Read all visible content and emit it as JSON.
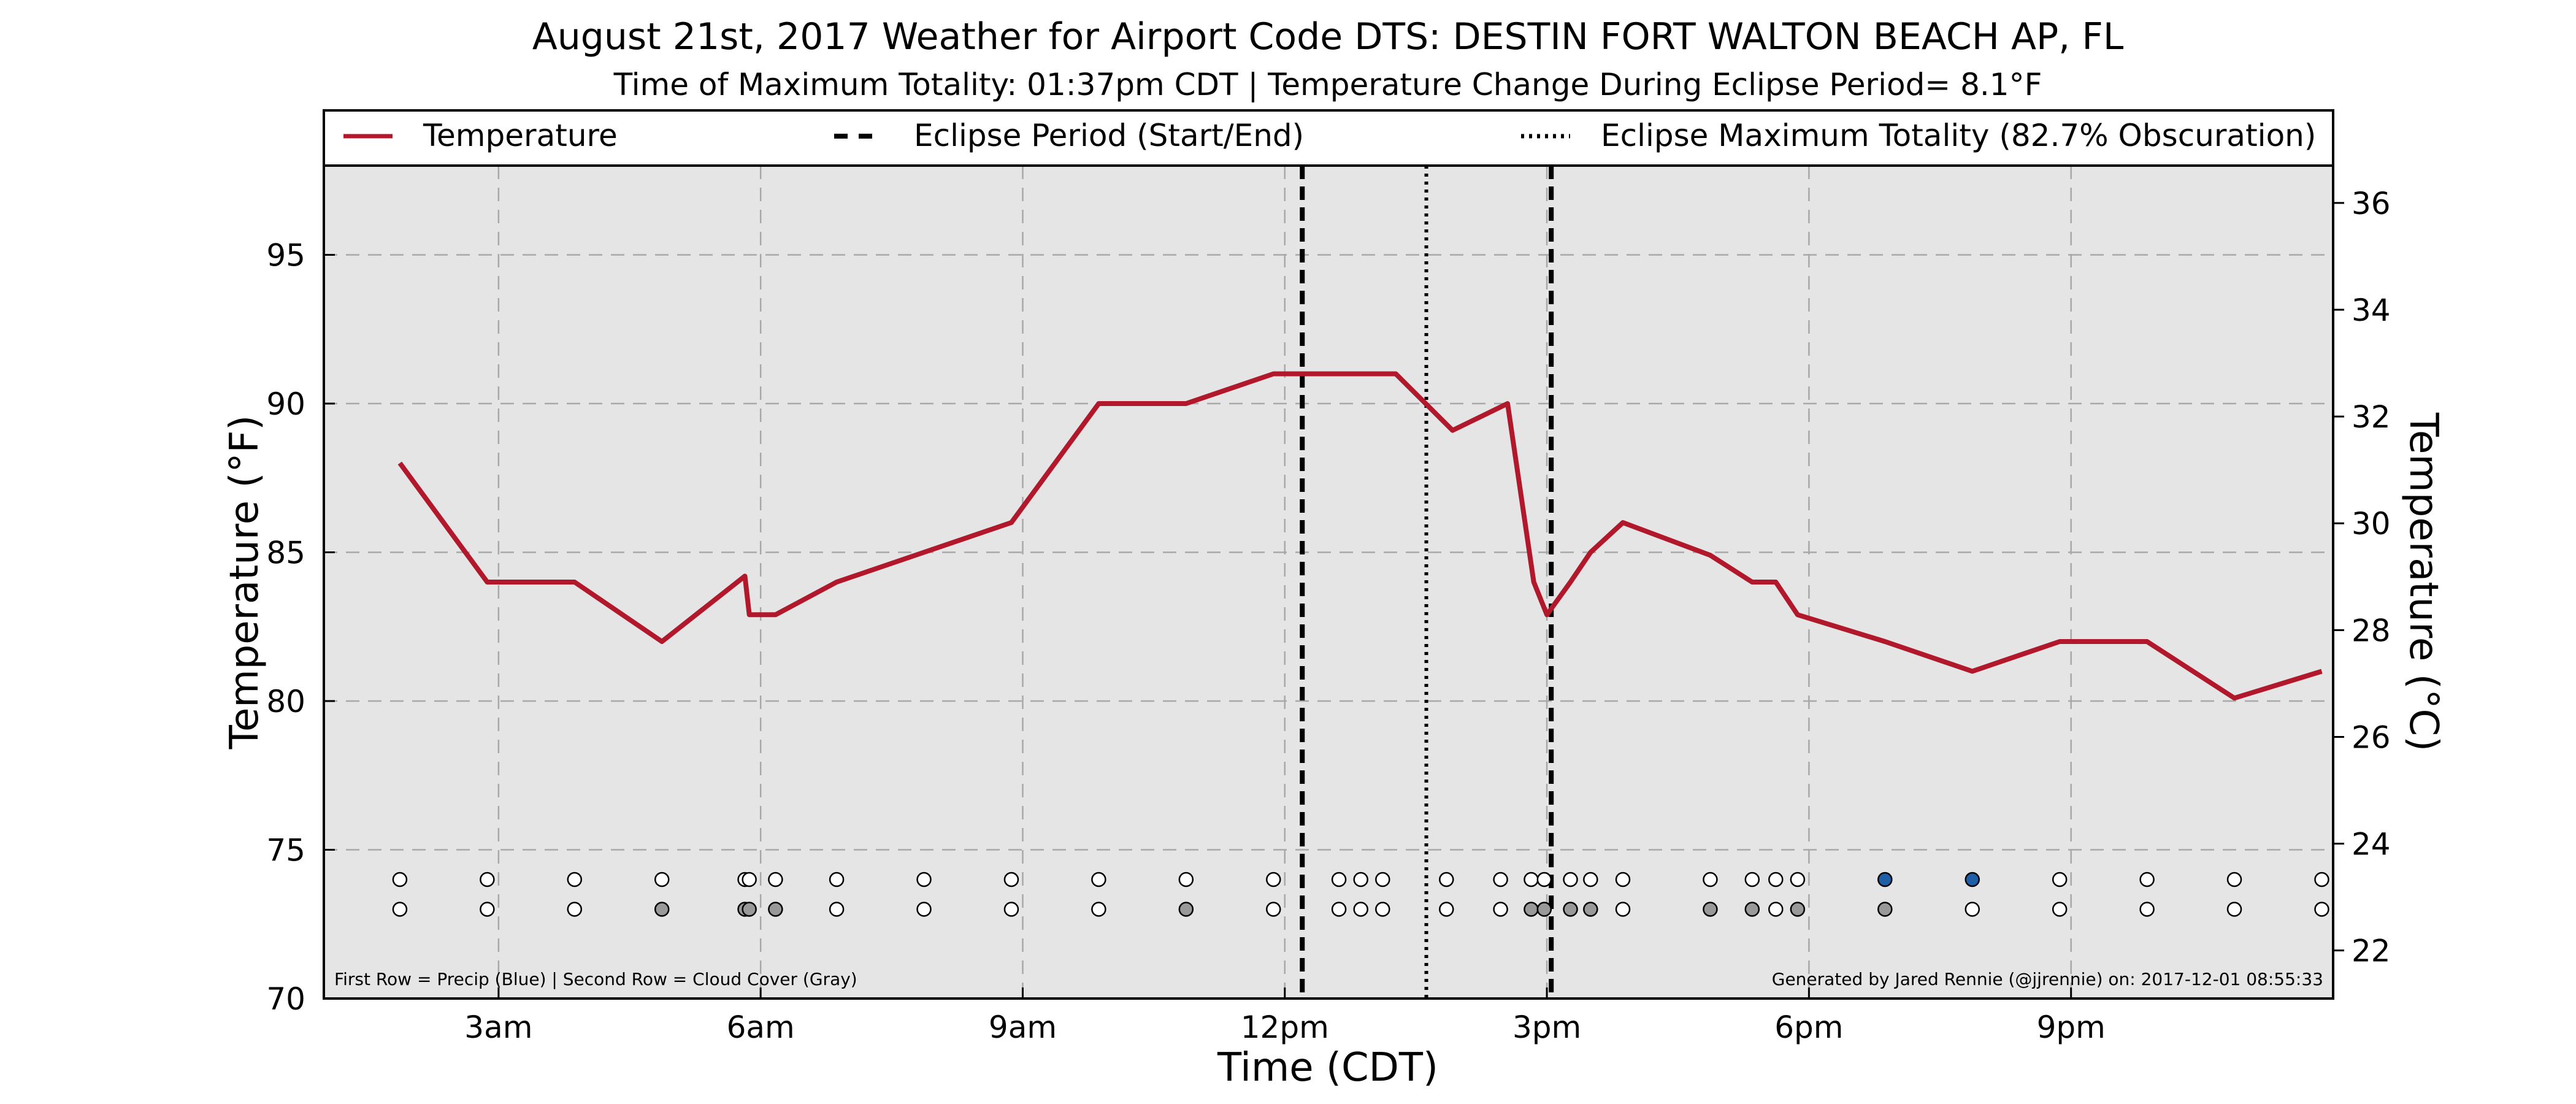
{
  "chart_data": {
    "type": "line",
    "title": "August 21st, 2017 Weather for Airport Code DTS: DESTIN FORT WALTON BEACH AP, FL",
    "subtitle": "Time of Maximum Totality: 01:37pm CDT | Temperature Change During Eclipse Period= 8.1$^\\circ$F",
    "subtitle_display": "Time of Maximum Totality: 01:37pm CDT | Temperature Change During Eclipse Period= 8.1°F",
    "xlabel": "Time (CDT)",
    "ylabel": "Temperature ($^\\circ$F)",
    "ylabel_display": "Temperature (°F)",
    "ylabel_right": "Temperature ($^\\circ$C)",
    "ylabel_right_display": "Temperature (°C)",
    "xlim": [
      1.0,
      24.0
    ],
    "ylim": [
      70,
      98
    ],
    "ylim_right": [
      21.1,
      36.7
    ],
    "x_ticks": [
      {
        "value": 3,
        "label": "3am"
      },
      {
        "value": 6,
        "label": "6am"
      },
      {
        "value": 9,
        "label": "9am"
      },
      {
        "value": 12,
        "label": "12pm"
      },
      {
        "value": 15,
        "label": "3pm"
      },
      {
        "value": 18,
        "label": "6pm"
      },
      {
        "value": 21,
        "label": "9pm"
      }
    ],
    "y_ticks": [
      70,
      75,
      80,
      85,
      90,
      95
    ],
    "y_ticks_right": [
      22,
      24,
      26,
      28,
      30,
      32,
      34,
      36
    ],
    "grid": true,
    "legend_position": "top",
    "legend": [
      {
        "label": "Temperature",
        "style": "solid",
        "color": "#b2182b"
      },
      {
        "label": "Eclipse Period (Start/End)",
        "style": "dashed",
        "color": "#000000"
      },
      {
        "label": "Eclipse Maximum Totality (82.7% Obscuration)",
        "style": "dotted",
        "color": "#000000"
      }
    ],
    "series": [
      {
        "name": "Temperature",
        "color": "#b2182b",
        "points": [
          [
            1.87,
            88.0
          ],
          [
            2.87,
            84.0
          ],
          [
            3.87,
            84.0
          ],
          [
            4.87,
            82.0
          ],
          [
            5.82,
            84.2
          ],
          [
            5.87,
            82.9
          ],
          [
            6.17,
            82.9
          ],
          [
            6.87,
            84.0
          ],
          [
            7.87,
            85.0
          ],
          [
            8.87,
            86.0
          ],
          [
            9.87,
            90.0
          ],
          [
            10.87,
            90.0
          ],
          [
            11.87,
            91.0
          ],
          [
            12.07,
            91.0
          ],
          [
            12.67,
            91.0
          ],
          [
            13.27,
            91.0
          ],
          [
            13.92,
            89.1
          ],
          [
            14.55,
            90.0
          ],
          [
            14.85,
            84.0
          ],
          [
            15.0,
            82.9
          ],
          [
            15.27,
            84.0
          ],
          [
            15.5,
            85.0
          ],
          [
            15.87,
            86.0
          ],
          [
            16.87,
            84.9
          ],
          [
            17.35,
            84.0
          ],
          [
            17.62,
            84.0
          ],
          [
            17.87,
            82.9
          ],
          [
            18.87,
            82.0
          ],
          [
            19.87,
            81.0
          ],
          [
            20.87,
            82.0
          ],
          [
            21.87,
            82.0
          ],
          [
            22.87,
            80.1
          ],
          [
            23.87,
            81.0
          ]
        ]
      }
    ],
    "eclipse_start": 12.2,
    "eclipse_end": 15.05,
    "eclipse_max": 13.62,
    "markers": {
      "row1_y": 74.0,
      "row2_y": 73.0,
      "row1": [
        {
          "x": 1.87,
          "color": "#ffffff"
        },
        {
          "x": 2.87,
          "color": "#ffffff"
        },
        {
          "x": 3.87,
          "color": "#ffffff"
        },
        {
          "x": 4.87,
          "color": "#ffffff"
        },
        {
          "x": 5.82,
          "color": "#ffffff"
        },
        {
          "x": 5.87,
          "color": "#ffffff"
        },
        {
          "x": 6.17,
          "color": "#ffffff"
        },
        {
          "x": 6.87,
          "color": "#ffffff"
        },
        {
          "x": 7.87,
          "color": "#ffffff"
        },
        {
          "x": 8.87,
          "color": "#ffffff"
        },
        {
          "x": 9.87,
          "color": "#ffffff"
        },
        {
          "x": 10.87,
          "color": "#ffffff"
        },
        {
          "x": 11.87,
          "color": "#ffffff"
        },
        {
          "x": 12.62,
          "color": "#ffffff"
        },
        {
          "x": 12.87,
          "color": "#ffffff"
        },
        {
          "x": 13.12,
          "color": "#ffffff"
        },
        {
          "x": 13.85,
          "color": "#ffffff"
        },
        {
          "x": 14.47,
          "color": "#ffffff"
        },
        {
          "x": 14.82,
          "color": "#ffffff"
        },
        {
          "x": 14.97,
          "color": "#ffffff"
        },
        {
          "x": 15.27,
          "color": "#ffffff"
        },
        {
          "x": 15.5,
          "color": "#ffffff"
        },
        {
          "x": 15.87,
          "color": "#ffffff"
        },
        {
          "x": 16.87,
          "color": "#ffffff"
        },
        {
          "x": 17.35,
          "color": "#ffffff"
        },
        {
          "x": 17.62,
          "color": "#ffffff"
        },
        {
          "x": 17.87,
          "color": "#ffffff"
        },
        {
          "x": 18.87,
          "color": "#1f5fa8"
        },
        {
          "x": 19.87,
          "color": "#1f5fa8"
        },
        {
          "x": 20.87,
          "color": "#ffffff"
        },
        {
          "x": 21.87,
          "color": "#ffffff"
        },
        {
          "x": 22.87,
          "color": "#ffffff"
        },
        {
          "x": 23.87,
          "color": "#ffffff"
        }
      ],
      "row2": [
        {
          "x": 1.87,
          "color": "#ffffff"
        },
        {
          "x": 2.87,
          "color": "#ffffff"
        },
        {
          "x": 3.87,
          "color": "#ffffff"
        },
        {
          "x": 4.87,
          "color": "#999999"
        },
        {
          "x": 5.82,
          "color": "#999999"
        },
        {
          "x": 5.87,
          "color": "#999999"
        },
        {
          "x": 6.17,
          "color": "#999999"
        },
        {
          "x": 6.87,
          "color": "#ffffff"
        },
        {
          "x": 7.87,
          "color": "#ffffff"
        },
        {
          "x": 8.87,
          "color": "#ffffff"
        },
        {
          "x": 9.87,
          "color": "#ffffff"
        },
        {
          "x": 10.87,
          "color": "#999999"
        },
        {
          "x": 11.87,
          "color": "#ffffff"
        },
        {
          "x": 12.62,
          "color": "#ffffff"
        },
        {
          "x": 12.87,
          "color": "#ffffff"
        },
        {
          "x": 13.12,
          "color": "#ffffff"
        },
        {
          "x": 13.85,
          "color": "#ffffff"
        },
        {
          "x": 14.47,
          "color": "#ffffff"
        },
        {
          "x": 14.82,
          "color": "#999999"
        },
        {
          "x": 14.97,
          "color": "#999999"
        },
        {
          "x": 15.27,
          "color": "#999999"
        },
        {
          "x": 15.5,
          "color": "#999999"
        },
        {
          "x": 15.87,
          "color": "#ffffff"
        },
        {
          "x": 16.87,
          "color": "#999999"
        },
        {
          "x": 17.35,
          "color": "#999999"
        },
        {
          "x": 17.62,
          "color": "#ffffff"
        },
        {
          "x": 17.87,
          "color": "#999999"
        },
        {
          "x": 18.87,
          "color": "#999999"
        },
        {
          "x": 19.87,
          "color": "#ffffff"
        },
        {
          "x": 20.87,
          "color": "#ffffff"
        },
        {
          "x": 21.87,
          "color": "#ffffff"
        },
        {
          "x": 22.87,
          "color": "#ffffff"
        },
        {
          "x": 23.87,
          "color": "#ffffff"
        }
      ]
    },
    "footnote_left": "First Row = Precip (Blue) | Second Row = Cloud Cover (Gray)",
    "footnote_right": "Generated by Jared Rennie (@jjrennie) on: 2017-12-01 08:55:33"
  }
}
